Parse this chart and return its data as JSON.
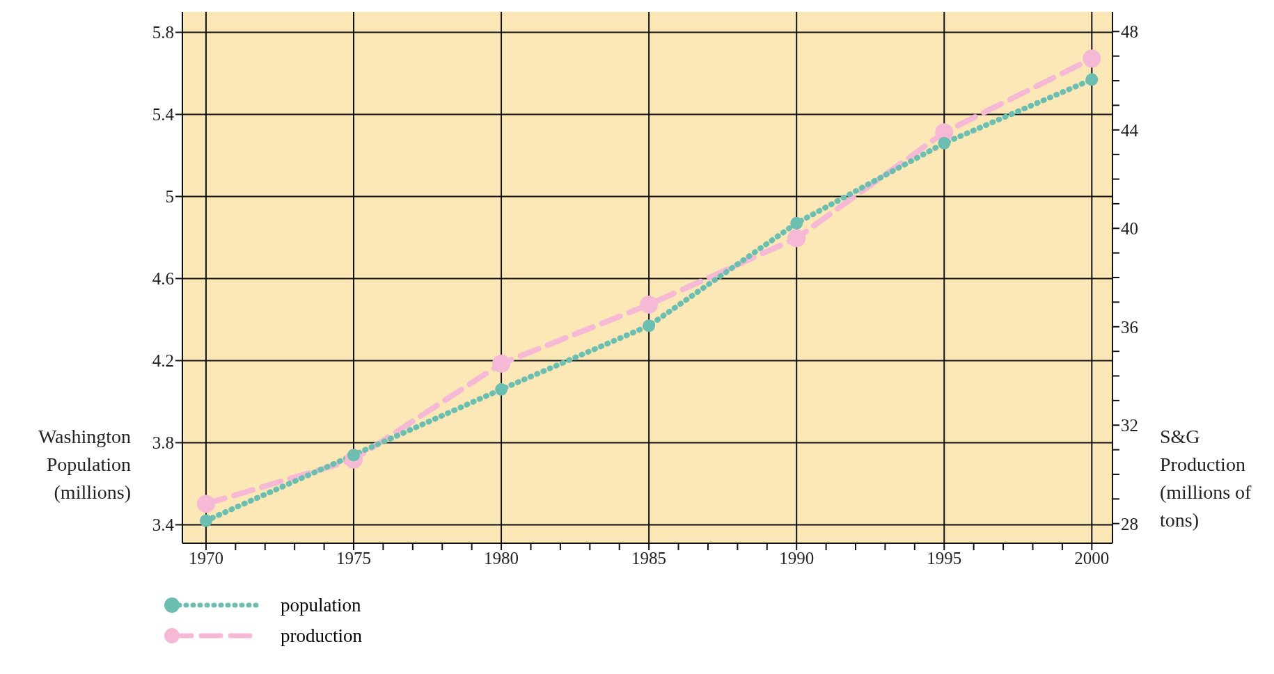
{
  "chart_data": {
    "type": "line",
    "ylabel": "Washington Population (millions)",
    "y2label": "S&G Production (millions of tons)",
    "x": [
      1970,
      1975,
      1980,
      1985,
      1990,
      1995,
      2000
    ],
    "series": [
      {
        "name": "population",
        "color": "#6cbfb0",
        "values": [
          3.42,
          3.74,
          4.06,
          4.37,
          4.87,
          5.26,
          5.57
        ],
        "marker": "circle",
        "line_style": "dotted"
      },
      {
        "name": "production",
        "color": "#f5b9d5",
        "axis": "y2",
        "values": [
          28.8,
          30.6,
          34.5,
          36.9,
          39.6,
          43.9,
          46.9
        ],
        "marker": "circle",
        "line_style": "dashed"
      }
    ],
    "xlim": [
      1969.2,
      2000.7
    ],
    "xticks": [
      1970,
      {
        "value": 1971,
        "label": null
      },
      {
        "value": 1972,
        "label": null
      },
      {
        "value": 1973,
        "label": null
      },
      {
        "value": 1974,
        "label": null
      },
      1975,
      {
        "value": 1976,
        "label": null
      },
      {
        "value": 1977,
        "label": null
      },
      {
        "value": 1978,
        "label": null
      },
      {
        "value": 1979,
        "label": null
      },
      1980,
      {
        "value": 1981,
        "label": null
      },
      {
        "value": 1982,
        "label": null
      },
      {
        "value": 1983,
        "label": null
      },
      {
        "value": 1984,
        "label": null
      },
      1985,
      {
        "value": 1986,
        "label": null
      },
      {
        "value": 1987,
        "label": null
      },
      {
        "value": 1988,
        "label": null
      },
      {
        "value": 1989,
        "label": null
      },
      1990,
      {
        "value": 1991,
        "label": null
      },
      {
        "value": 1992,
        "label": null
      },
      {
        "value": 1993,
        "label": null
      },
      {
        "value": 1994,
        "label": null
      },
      1995,
      {
        "value": 1996,
        "label": null
      },
      {
        "value": 1997,
        "label": null
      },
      {
        "value": 1998,
        "label": null
      },
      {
        "value": 1999,
        "label": null
      },
      2000
    ],
    "ylim": [
      3.31,
      5.9
    ],
    "yticks": [
      3.4,
      3.8,
      4.2,
      4.6,
      5,
      5.4,
      5.8
    ],
    "y2lim": [
      27.2,
      48.8
    ],
    "y2ticks": [
      28,
      {
        "value": 29,
        "label": null
      },
      {
        "value": 30,
        "label": null
      },
      {
        "value": 31,
        "label": null
      },
      32,
      {
        "value": 33,
        "label": null
      },
      {
        "value": 34,
        "label": null
      },
      {
        "value": 35,
        "label": null
      },
      36,
      {
        "value": 37,
        "label": null
      },
      {
        "value": 38,
        "label": null
      },
      {
        "value": 39,
        "label": null
      },
      40,
      {
        "value": 41,
        "label": null
      },
      {
        "value": 42,
        "label": null
      },
      {
        "value": 43,
        "label": null
      },
      44,
      {
        "value": 45,
        "label": null
      },
      {
        "value": 46,
        "label": null
      },
      {
        "value": 47,
        "label": null
      },
      48
    ],
    "grid": true,
    "legend": "bottom left"
  }
}
